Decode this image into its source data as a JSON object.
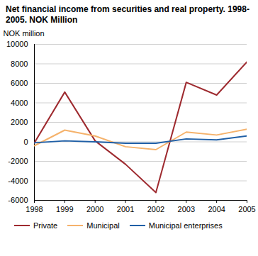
{
  "chart_data": {
    "type": "line",
    "title": "Net financial income from securities and real property. 1998-2005. NOK Million",
    "y_label": "NOK million",
    "x": [
      1998,
      1999,
      2000,
      2001,
      2002,
      2003,
      2004,
      2005
    ],
    "series": [
      {
        "name": "Private",
        "color": "#9e2a2f",
        "values": [
          -100,
          5100,
          100,
          -2300,
          -5200,
          6100,
          4800,
          8200
        ]
      },
      {
        "name": "Municipal",
        "color": "#f5b26b",
        "values": [
          -400,
          1200,
          600,
          -500,
          -800,
          1000,
          700,
          1300
        ]
      },
      {
        "name": "Municipal enterprises",
        "color": "#1f5fa6",
        "values": [
          -100,
          100,
          0,
          -150,
          -150,
          300,
          200,
          600
        ]
      }
    ],
    "xlim": [
      1998,
      2005
    ],
    "xticks": [
      1998,
      1999,
      2000,
      2001,
      2002,
      2003,
      2004,
      2005
    ],
    "ylim": [
      -6000,
      10000
    ],
    "yticks": [
      -6000,
      -4000,
      -2000,
      0,
      2000,
      4000,
      6000,
      8000,
      10000
    ],
    "grid": true,
    "legend": "bottom"
  }
}
